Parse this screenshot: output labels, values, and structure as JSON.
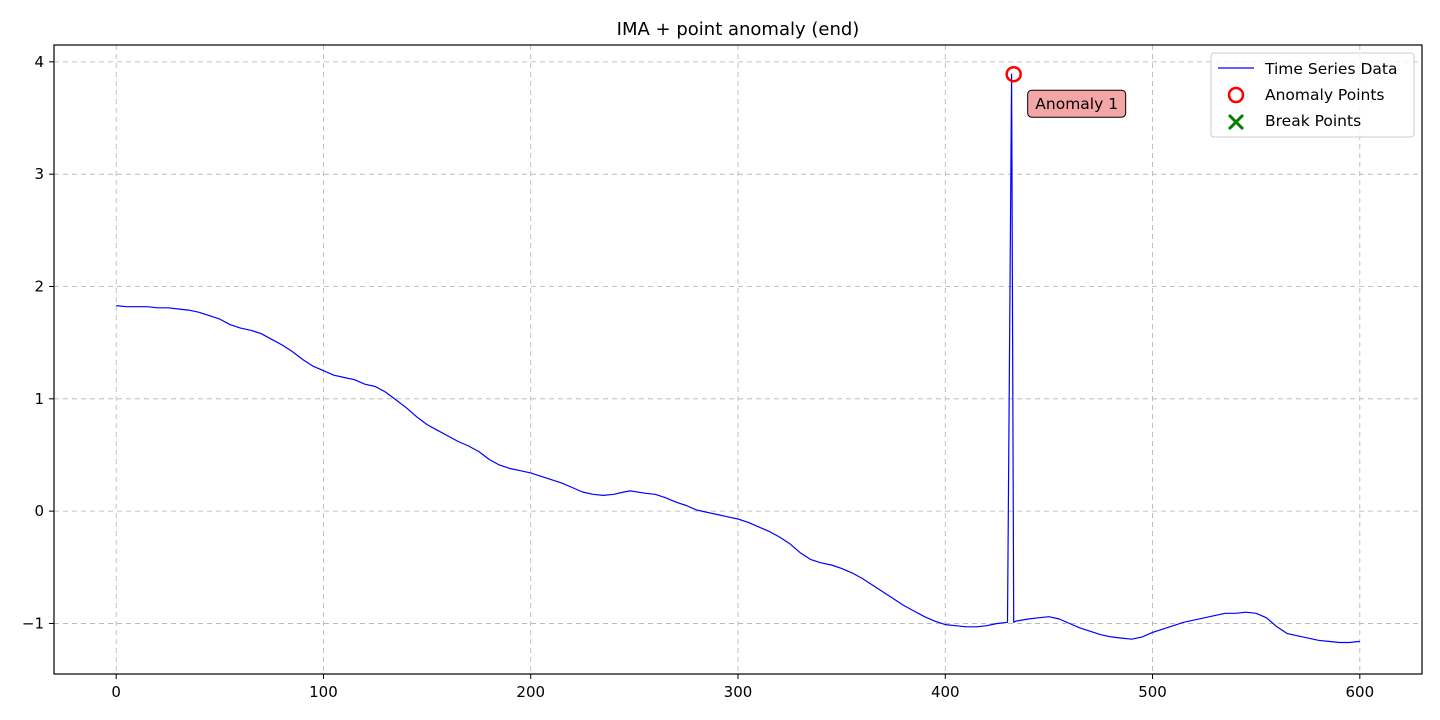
{
  "chart_data": {
    "type": "line",
    "title": "IMA + point anomaly (end)",
    "xlabel": "",
    "ylabel": "",
    "xlim": [
      -30,
      630
    ],
    "ylim": [
      -1.45,
      4.15
    ],
    "xticks": [
      0,
      100,
      200,
      300,
      400,
      500,
      600
    ],
    "yticks": [
      -1,
      0,
      1,
      2,
      3,
      4
    ],
    "ytick_labels": [
      "−1",
      "0",
      "1",
      "2",
      "3",
      "4"
    ],
    "grid": true,
    "legend_position": "top-right",
    "legend": [
      {
        "label": "Time Series Data",
        "marker": "line",
        "color": "#0000ff"
      },
      {
        "label": "Anomaly Points",
        "marker": "circle",
        "color": "#ff0000"
      },
      {
        "label": "Break Points",
        "marker": "x",
        "color": "#008000"
      }
    ],
    "series": [
      {
        "name": "Time Series Data",
        "color": "#0000ff",
        "x": [
          0,
          5,
          10,
          15,
          20,
          25,
          30,
          35,
          40,
          45,
          50,
          55,
          60,
          65,
          70,
          75,
          80,
          85,
          90,
          95,
          100,
          105,
          110,
          115,
          120,
          125,
          130,
          135,
          140,
          145,
          150,
          155,
          160,
          165,
          170,
          175,
          180,
          185,
          190,
          195,
          200,
          205,
          210,
          215,
          220,
          225,
          230,
          235,
          240,
          245,
          248,
          255,
          260,
          265,
          270,
          275,
          280,
          285,
          290,
          295,
          300,
          305,
          310,
          315,
          320,
          325,
          330,
          335,
          340,
          345,
          350,
          355,
          360,
          365,
          370,
          375,
          380,
          385,
          390,
          395,
          400,
          405,
          410,
          415,
          420,
          425,
          430,
          432,
          433,
          434,
          440,
          445,
          450,
          455,
          460,
          465,
          470,
          475,
          480,
          485,
          490,
          495,
          500,
          505,
          510,
          515,
          520,
          525,
          530,
          535,
          540,
          545,
          550,
          555,
          560,
          565,
          570,
          575,
          580,
          585,
          590,
          595,
          600
        ],
        "y": [
          1.83,
          1.82,
          1.82,
          1.82,
          1.81,
          1.81,
          1.8,
          1.79,
          1.77,
          1.74,
          1.71,
          1.66,
          1.63,
          1.61,
          1.58,
          1.53,
          1.48,
          1.42,
          1.35,
          1.29,
          1.25,
          1.21,
          1.19,
          1.17,
          1.13,
          1.11,
          1.06,
          0.99,
          0.92,
          0.84,
          0.77,
          0.72,
          0.67,
          0.62,
          0.58,
          0.53,
          0.46,
          0.41,
          0.38,
          0.36,
          0.34,
          0.31,
          0.28,
          0.25,
          0.21,
          0.17,
          0.15,
          0.14,
          0.15,
          0.17,
          0.18,
          0.16,
          0.15,
          0.12,
          0.08,
          0.05,
          0.01,
          -0.01,
          -0.03,
          -0.05,
          -0.07,
          -0.1,
          -0.14,
          -0.18,
          -0.23,
          -0.29,
          -0.37,
          -0.43,
          -0.46,
          -0.48,
          -0.51,
          -0.55,
          -0.6,
          -0.66,
          -0.72,
          -0.78,
          -0.84,
          -0.89,
          -0.94,
          -0.98,
          -1.01,
          -1.02,
          -1.03,
          -1.03,
          -1.02,
          -1.0,
          -0.99,
          3.89,
          -0.99,
          -0.98,
          -0.96,
          -0.95,
          -0.94,
          -0.96,
          -1.0,
          -1.04,
          -1.07,
          -1.1,
          -1.12,
          -1.13,
          -1.14,
          -1.12,
          -1.08,
          -1.05,
          -1.02,
          -0.99,
          -0.97,
          -0.95,
          -0.93,
          -0.91,
          -0.91,
          -0.9,
          -0.91,
          -0.95,
          -1.03,
          -1.09,
          -1.11,
          -1.13,
          -1.15,
          -1.16,
          -1.17,
          -1.17,
          -1.16
        ]
      }
    ],
    "anomaly_points": [
      {
        "x": 433,
        "y": 3.89
      }
    ],
    "break_points": [],
    "annotations": [
      {
        "text": "Anomaly 1",
        "x": 433,
        "y": 3.89
      }
    ]
  }
}
